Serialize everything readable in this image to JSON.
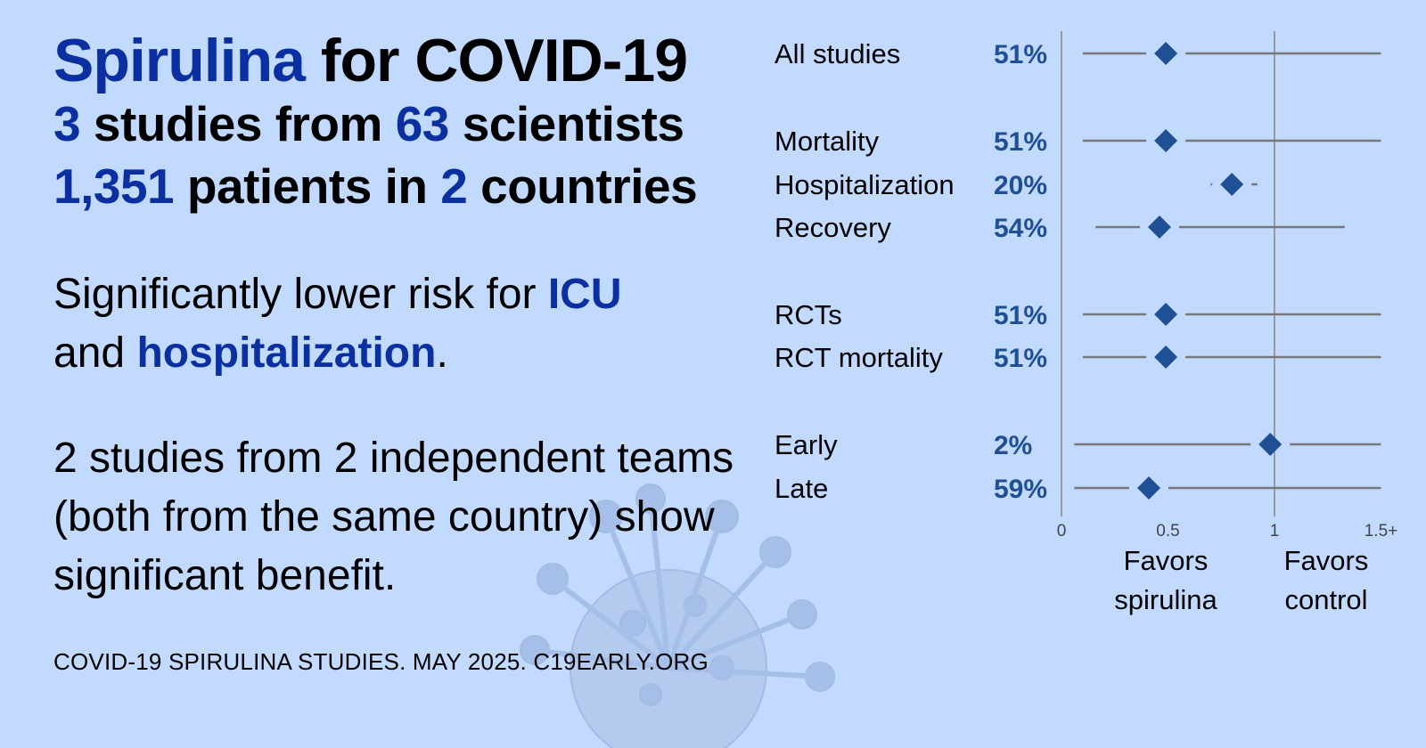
{
  "headline": {
    "drug": "Spirulina",
    "for": "for COVID-19",
    "studies_count": "3",
    "studies_from": "studies from",
    "scientists_count": "63",
    "scientists_label": "scientists",
    "patients_count": "1,351",
    "patients_in": "patients in",
    "countries_count": "2",
    "countries_label": "countries"
  },
  "finding": {
    "prefix": "Significantly lower risk for",
    "outcome1": "ICU",
    "and": "and",
    "outcome2": "hospitalization",
    "suffix": "."
  },
  "independent_text": "2 studies from 2 independent teams (both from the same country) show significant benefit.",
  "footer": "COVID-19 SPIRULINA STUDIES. MAY 2025. C19EARLY.ORG",
  "colors": {
    "background": "#c2daff",
    "accent": "#0a2fa0",
    "marker": "#1f4f95",
    "ci_line": "#777777"
  },
  "chart_data": {
    "type": "forest",
    "xlim": [
      0,
      1.5
    ],
    "x_ticks": [
      "0",
      "0.5",
      "1",
      "1.5+"
    ],
    "reference_line": 1,
    "favors_left": [
      "Favors",
      "spirulina"
    ],
    "favors_right": [
      "Favors",
      "control"
    ],
    "rows": [
      {
        "label": "All studies",
        "value": "51%",
        "estimate": 0.49,
        "ci": [
          0.1,
          1.5
        ]
      },
      {
        "label": "Mortality",
        "value": "51%",
        "estimate": 0.49,
        "ci": [
          0.1,
          1.5
        ]
      },
      {
        "label": "Hospitalization",
        "value": "20%",
        "estimate": 0.8,
        "ci": [
          0.7,
          0.92
        ]
      },
      {
        "label": "Recovery",
        "value": "54%",
        "estimate": 0.46,
        "ci": [
          0.16,
          1.33
        ]
      },
      {
        "label": "RCTs",
        "value": "51%",
        "estimate": 0.49,
        "ci": [
          0.1,
          1.5
        ]
      },
      {
        "label": "RCT mortality",
        "value": "51%",
        "estimate": 0.49,
        "ci": [
          0.1,
          1.5
        ]
      },
      {
        "label": "Early",
        "value": "2%",
        "estimate": 0.98,
        "ci": [
          0.06,
          1.5
        ]
      },
      {
        "label": "Late",
        "value": "59%",
        "estimate": 0.41,
        "ci": [
          0.06,
          1.5
        ]
      }
    ]
  }
}
